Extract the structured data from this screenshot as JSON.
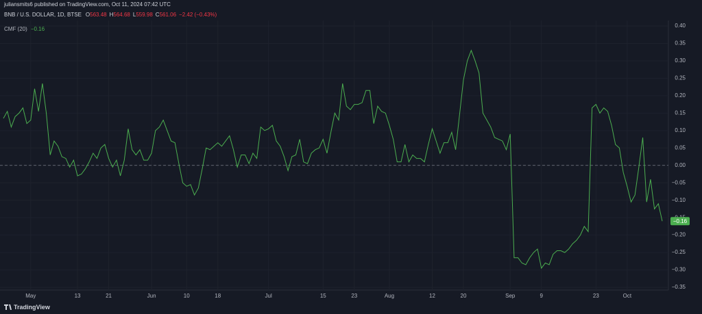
{
  "header": {
    "publisher": "juliansmits6 published on TradingView.com, Oct 11, 2024 07:42 UTC",
    "symbol": "BNB / U.S. DOLLAR, 1D, BTSE",
    "ohlc": [
      {
        "label": "O",
        "value": "563.48"
      },
      {
        "label": "H",
        "value": "564.68"
      },
      {
        "label": "L",
        "value": "559.98"
      },
      {
        "label": "C",
        "value": "561.06"
      }
    ],
    "change": "−2.42 (−0.43%)"
  },
  "footer": {
    "brand": "TradingView"
  },
  "chart_data": {
    "type": "line",
    "x": [
      "Apr 24",
      "Apr 25",
      "Apr 26",
      "Apr 27",
      "Apr 28",
      "Apr 29",
      "Apr 30",
      "May 1",
      "May 2",
      "May 3",
      "May 4",
      "May 5",
      "May 6",
      "May 7",
      "May 8",
      "May 9",
      "May 10",
      "May 11",
      "May 12",
      "May 13",
      "May 14",
      "May 15",
      "May 16",
      "May 17",
      "May 18",
      "May 19",
      "May 20",
      "May 21",
      "May 22",
      "May 23",
      "May 24",
      "May 25",
      "May 26",
      "May 27",
      "May 28",
      "May 29",
      "May 30",
      "May 31",
      "Jun 1",
      "Jun 2",
      "Jun 3",
      "Jun 4",
      "Jun 5",
      "Jun 6",
      "Jun 7",
      "Jun 8",
      "Jun 9",
      "Jun 10",
      "Jun 11",
      "Jun 12",
      "Jun 13",
      "Jun 14",
      "Jun 15",
      "Jun 16",
      "Jun 17",
      "Jun 18",
      "Jun 19",
      "Jun 20",
      "Jun 21",
      "Jun 22",
      "Jun 23",
      "Jun 24",
      "Jun 25",
      "Jun 26",
      "Jun 27",
      "Jun 28",
      "Jun 29",
      "Jun 30",
      "Jul 1",
      "Jul 2",
      "Jul 3",
      "Jul 4",
      "Jul 5",
      "Jul 6",
      "Jul 7",
      "Jul 8",
      "Jul 9",
      "Jul 10",
      "Jul 11",
      "Jul 12",
      "Jul 13",
      "Jul 14",
      "Jul 15",
      "Jul 16",
      "Jul 17",
      "Jul 18",
      "Jul 19",
      "Jul 20",
      "Jul 21",
      "Jul 22",
      "Jul 23",
      "Jul 24",
      "Jul 25",
      "Jul 26",
      "Jul 27",
      "Jul 28",
      "Jul 29",
      "Jul 30",
      "Jul 31",
      "Aug 1",
      "Aug 2",
      "Aug 3",
      "Aug 4",
      "Aug 5",
      "Aug 6",
      "Aug 7",
      "Aug 8",
      "Aug 9",
      "Aug 10",
      "Aug 11",
      "Aug 12",
      "Aug 13",
      "Aug 14",
      "Aug 15",
      "Aug 16",
      "Aug 17",
      "Aug 18",
      "Aug 19",
      "Aug 20",
      "Aug 21",
      "Aug 22",
      "Aug 23",
      "Aug 24",
      "Aug 25",
      "Aug 26",
      "Aug 27",
      "Aug 28",
      "Aug 29",
      "Aug 30",
      "Aug 31",
      "Sep 1",
      "Sep 2",
      "Sep 3",
      "Sep 4",
      "Sep 5",
      "Sep 6",
      "Sep 7",
      "Sep 8",
      "Sep 9",
      "Sep 10",
      "Sep 11",
      "Sep 12",
      "Sep 13",
      "Sep 14",
      "Sep 15",
      "Sep 16",
      "Sep 17",
      "Sep 18",
      "Sep 19",
      "Sep 20",
      "Sep 21",
      "Sep 22",
      "Sep 23",
      "Sep 24",
      "Sep 25",
      "Sep 26",
      "Sep 27",
      "Sep 28",
      "Sep 29",
      "Sep 30",
      "Oct 1",
      "Oct 2",
      "Oct 3",
      "Oct 4",
      "Oct 5",
      "Oct 6",
      "Oct 7",
      "Oct 8",
      "Oct 9",
      "Oct 10"
    ],
    "series": [
      {
        "name": "CMF (20)",
        "color": "#4caf50",
        "last_value_label": "−0.16",
        "values": [
          0.135,
          0.155,
          0.11,
          0.14,
          0.15,
          0.165,
          0.12,
          0.13,
          0.22,
          0.155,
          0.235,
          0.15,
          0.03,
          0.07,
          0.055,
          0.025,
          0.02,
          -0.005,
          0.015,
          -0.03,
          -0.025,
          -0.01,
          0.01,
          0.035,
          0.02,
          0.05,
          0.06,
          0.02,
          -0.005,
          0.015,
          -0.03,
          0.015,
          0.105,
          0.045,
          0.03,
          0.045,
          0.015,
          0.015,
          0.035,
          0.1,
          0.11,
          0.13,
          0.1,
          0.07,
          0.065,
          0.005,
          -0.05,
          -0.06,
          -0.055,
          -0.085,
          -0.065,
          -0.01,
          0.05,
          0.045,
          0.055,
          0.065,
          0.055,
          0.07,
          0.085,
          0.045,
          -0.005,
          0.03,
          0.03,
          0.005,
          0.035,
          0.02,
          0.11,
          0.1,
          0.105,
          0.115,
          0.07,
          0.055,
          0.025,
          -0.015,
          0.025,
          0.03,
          0.075,
          0.01,
          0.005,
          0.035,
          0.045,
          0.05,
          0.075,
          0.035,
          0.095,
          0.15,
          0.13,
          0.235,
          0.17,
          0.16,
          0.175,
          0.175,
          0.18,
          0.215,
          0.215,
          0.12,
          0.17,
          0.155,
          0.15,
          0.115,
          0.075,
          0.01,
          0.01,
          0.06,
          0.01,
          0.03,
          0.02,
          0.02,
          0.01,
          0.06,
          0.105,
          0.07,
          0.035,
          0.065,
          0.065,
          0.095,
          0.045,
          0.145,
          0.245,
          0.3,
          0.33,
          0.3,
          0.265,
          0.15,
          0.13,
          0.11,
          0.08,
          0.075,
          0.07,
          0.045,
          0.09,
          -0.265,
          -0.265,
          -0.28,
          -0.285,
          -0.265,
          -0.25,
          -0.24,
          -0.295,
          -0.28,
          -0.285,
          -0.255,
          -0.245,
          -0.245,
          -0.25,
          -0.24,
          -0.225,
          -0.215,
          -0.2,
          -0.175,
          -0.19,
          0.165,
          0.175,
          0.15,
          0.165,
          0.155,
          0.115,
          0.06,
          0.05,
          -0.02,
          -0.06,
          -0.105,
          -0.085,
          -0.005,
          0.08,
          -0.105,
          -0.04,
          -0.125,
          -0.11,
          -0.16
        ]
      }
    ],
    "ylim": [
      -0.3665,
      0.415
    ],
    "yticks": [
      {
        "value": 0.4,
        "label": "0.40"
      },
      0.35,
      {
        "value": 0.3,
        "label": "0.30"
      },
      0.25,
      {
        "value": 0.2,
        "label": "0.20"
      },
      0.15,
      {
        "value": 0.1,
        "label": "0.10"
      },
      0.05,
      {
        "value": 0,
        "label": "0.00"
      },
      {
        "value": -0.05,
        "label": "−0.05"
      },
      {
        "value": -0.1,
        "label": "−0.10"
      },
      {
        "value": -0.15,
        "label": "−0.15"
      },
      {
        "value": -0.2,
        "label": "−0.20"
      },
      {
        "value": -0.25,
        "label": "−0.25"
      },
      {
        "value": -0.3,
        "label": "−0.30"
      },
      {
        "value": -0.35,
        "label": "−0.35"
      }
    ],
    "xticks": [
      {
        "value": "May 1",
        "label": "May"
      },
      {
        "value": "May 13",
        "label": "13"
      },
      {
        "value": "May 21",
        "label": "21"
      },
      {
        "value": "Jun 1",
        "label": "Jun"
      },
      {
        "value": "Jun 10",
        "label": "10"
      },
      {
        "value": "Jun 18",
        "label": "18"
      },
      {
        "value": "Jul 1",
        "label": "Jul"
      },
      {
        "value": "Jul 15",
        "label": "15"
      },
      {
        "value": "Jul 23",
        "label": "23"
      },
      {
        "value": "Aug 1",
        "label": "Aug"
      },
      {
        "value": "Aug 12",
        "label": "12"
      },
      {
        "value": "Aug 20",
        "label": "20"
      },
      {
        "value": "Sep 1",
        "label": "Sep"
      },
      {
        "value": "Sep 9",
        "label": "9"
      },
      {
        "value": "Sep 23",
        "label": "23"
      },
      {
        "value": "Oct 1",
        "label": "Oct"
      }
    ],
    "grid": true,
    "zero_line": 0
  }
}
